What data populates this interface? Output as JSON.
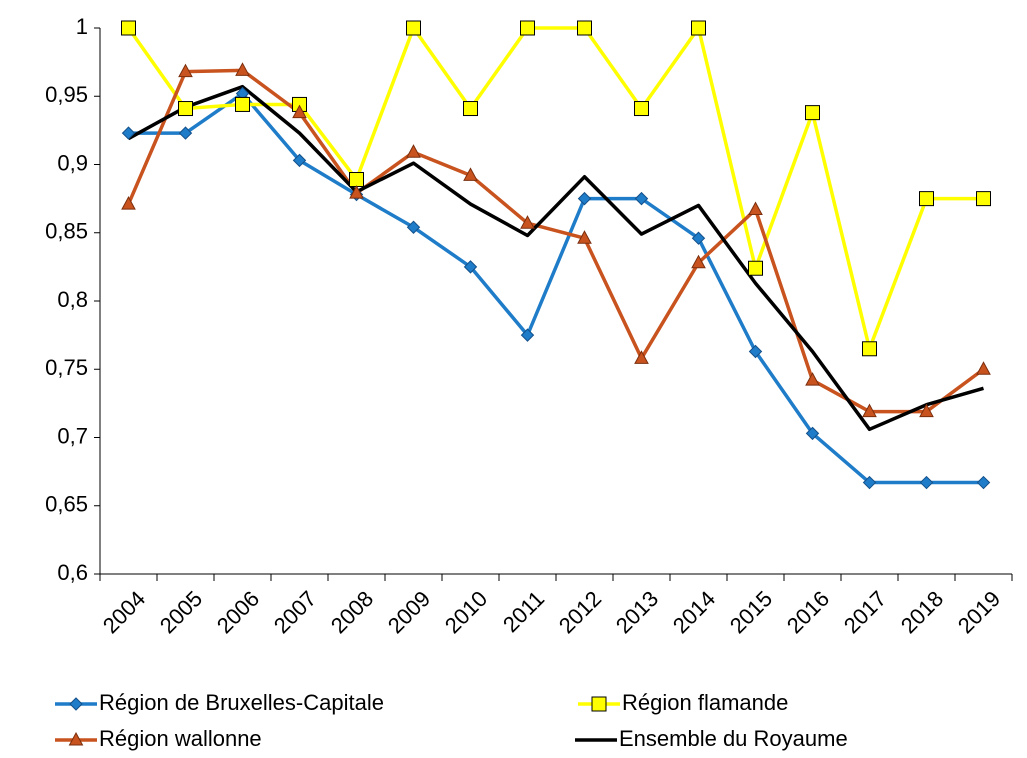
{
  "chart_data": {
    "type": "line",
    "categories": [
      "2004",
      "2005",
      "2006",
      "2007",
      "2008",
      "2009",
      "2010",
      "2011",
      "2012",
      "2013",
      "2014",
      "2015",
      "2016",
      "2017",
      "2018",
      "2019"
    ],
    "series": [
      {
        "name": "Région de Bruxelles-Capitale",
        "color": "#1f7cc8",
        "marker": "diamond",
        "values": [
          0.923,
          0.923,
          0.952,
          0.903,
          0.878,
          0.854,
          0.825,
          0.775,
          0.875,
          0.875,
          0.846,
          0.763,
          0.703,
          0.667,
          0.667,
          0.667
        ]
      },
      {
        "name": "Région flamande",
        "color": "#ffff00",
        "marker": "square",
        "values": [
          1,
          0.941,
          0.944,
          0.944,
          0.889,
          1,
          0.941,
          1,
          1,
          0.941,
          1,
          0.824,
          0.938,
          0.765,
          0.875,
          0.875
        ]
      },
      {
        "name": "Région wallonne",
        "color": "#c8531e",
        "marker": "triangle",
        "values": [
          0.871,
          0.968,
          0.969,
          0.938,
          0.879,
          0.909,
          0.892,
          0.857,
          0.846,
          0.758,
          0.828,
          0.867,
          0.742,
          0.719,
          0.719,
          0.75
        ]
      },
      {
        "name": "Ensemble du Royaume",
        "color": "#000000",
        "marker": "none",
        "values": [
          0.919,
          0.942,
          0.957,
          0.923,
          0.88,
          0.901,
          0.871,
          0.848,
          0.891,
          0.849,
          0.87,
          0.813,
          0.763,
          0.706,
          0.724,
          0.736
        ]
      }
    ],
    "ylim": [
      0.6,
      1
    ],
    "yticks": [
      {
        "value": 0.6,
        "label": "0,6"
      },
      {
        "value": 0.65,
        "label": "0,65"
      },
      {
        "value": 0.7,
        "label": "0,7"
      },
      {
        "value": 0.75,
        "label": "0,75"
      },
      {
        "value": 0.8,
        "label": "0,8"
      },
      {
        "value": 0.85,
        "label": "0,85"
      },
      {
        "value": 0.9,
        "label": "0,9"
      },
      {
        "value": 0.95,
        "label": "0,95"
      },
      1
    ],
    "grid": false
  }
}
